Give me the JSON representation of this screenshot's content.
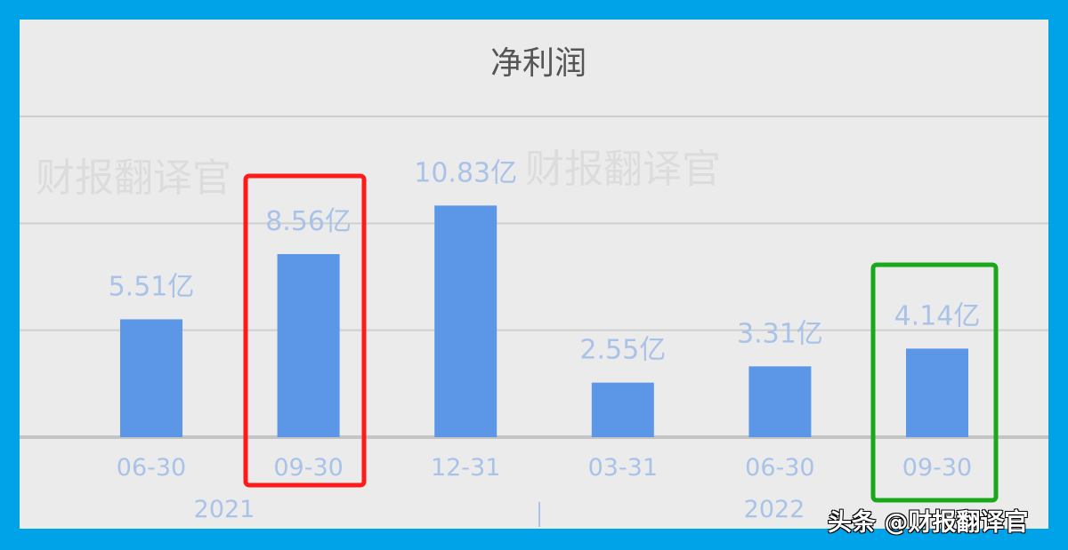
{
  "chart_data": {
    "type": "bar",
    "title": "净利润",
    "categories": [
      "06-30",
      "09-30",
      "12-31",
      "03-31",
      "06-30",
      "09-30"
    ],
    "year_groups": [
      {
        "label": "2021",
        "span": [
          0,
          2
        ]
      },
      {
        "label": "2022",
        "span": [
          3,
          5
        ]
      }
    ],
    "values": [
      5.51,
      8.56,
      10.83,
      2.55,
      3.31,
      4.14
    ],
    "data_labels": [
      "5.51亿",
      "8.56亿",
      "10.83亿",
      "2.55亿",
      "3.31亿",
      "4.14亿"
    ],
    "unit": "亿",
    "ylim": [
      0,
      15
    ],
    "grid": true,
    "bar_color": "#5b97e6",
    "label_color": "#a9c3e8",
    "highlights": [
      {
        "index": 1,
        "color": "#ff1a1a"
      },
      {
        "index": 5,
        "color": "#19a819"
      }
    ]
  },
  "watermark": "财报翻译官",
  "footer_watermark": "头条 @财报翻译官",
  "frame_color": "#00a3e8"
}
